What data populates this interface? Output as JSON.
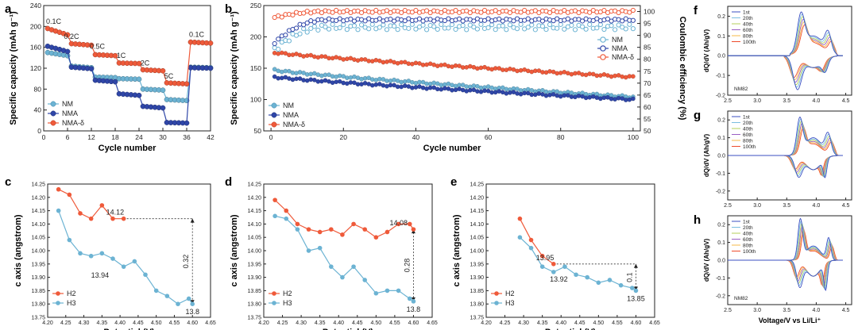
{
  "colors": {
    "nm": "#6cb3d3",
    "nma": "#2f46a8",
    "nmad": "#ef5a3a",
    "dq": [
      "#3b4fc2",
      "#7bbde0",
      "#b5cf5a",
      "#9a5fc4",
      "#f5b84a",
      "#ee4b2b"
    ]
  },
  "chart_data": [
    {
      "panel": "a",
      "type": "scatter",
      "title": "",
      "xlabel": "Cycle number",
      "ylabel": "Specific capacity (mAh g⁻¹)",
      "xlim": [
        0,
        42
      ],
      "ylim": [
        0,
        240
      ],
      "xticks": [
        0,
        6,
        12,
        18,
        24,
        30,
        36,
        42
      ],
      "yticks": [
        0,
        40,
        80,
        120,
        160,
        200,
        240
      ],
      "rate_labels": [
        {
          "text": "0.1C",
          "x": 2.5,
          "y": 205
        },
        {
          "text": "0.2C",
          "x": 7,
          "y": 176
        },
        {
          "text": "0.5C",
          "x": 13.5,
          "y": 157
        },
        {
          "text": "1C",
          "x": 19.5,
          "y": 140
        },
        {
          "text": "2C",
          "x": 25.5,
          "y": 125
        },
        {
          "text": "5C",
          "x": 31.5,
          "y": 100
        },
        {
          "text": "0.1C",
          "x": 38.5,
          "y": 180
        }
      ],
      "legend": [
        "NM",
        "NMA",
        "NMA-δ"
      ],
      "series": [
        {
          "name": "NM",
          "color": "nm",
          "levels": [
            [
              1,
              6,
              150,
              144
            ],
            [
              7,
              12,
              124,
              121
            ],
            [
              13,
              18,
              103,
              102
            ],
            [
              19,
              24,
              100,
              99
            ],
            [
              25,
              30,
              80,
              78
            ],
            [
              31,
              36,
              60,
              58
            ],
            [
              37,
              42,
              122,
              121
            ]
          ]
        },
        {
          "name": "NMA",
          "color": "nma",
          "levels": [
            [
              1,
              6,
              162,
              152
            ],
            [
              7,
              12,
              122,
              119
            ],
            [
              13,
              18,
              97,
              94
            ],
            [
              19,
              24,
              71,
              68
            ],
            [
              25,
              30,
              47,
              44
            ],
            [
              31,
              36,
              16,
              15
            ],
            [
              37,
              42,
              121,
              120
            ]
          ]
        },
        {
          "name": "NMA-δ",
          "color": "nmad",
          "levels": [
            [
              1,
              6,
              196,
              184
            ],
            [
              7,
              12,
              167,
              164
            ],
            [
              13,
              18,
              146,
              144
            ],
            [
              19,
              24,
              130,
              129
            ],
            [
              25,
              30,
              117,
              115
            ],
            [
              31,
              36,
              92,
              90
            ],
            [
              37,
              42,
              170,
              168
            ]
          ]
        }
      ]
    },
    {
      "panel": "b",
      "type": "scatter",
      "xlabel": "Cycle number",
      "ylabel": "Specific capacity (mAh g⁻¹)",
      "y2label": "Coulombic efficiency (%)",
      "xlim": [
        -2,
        102
      ],
      "ylim": [
        50,
        250
      ],
      "y2lim": [
        50,
        102.5
      ],
      "xticks": [
        0,
        20,
        40,
        60,
        80,
        100
      ],
      "yticks": [
        50,
        100,
        150,
        200,
        250
      ],
      "y2ticks": [
        50,
        55,
        60,
        65,
        70,
        75,
        80,
        85,
        90,
        95,
        100
      ],
      "legend_capacity": [
        "NM",
        "NMA",
        "NMA-δ"
      ],
      "legend_efficiency": [
        "NM",
        "NMA",
        "NMA-δ"
      ],
      "capacity": [
        {
          "name": "NM",
          "color": "nm",
          "start": 147,
          "end": 104
        },
        {
          "name": "NMA",
          "color": "nma",
          "start": 136,
          "end": 100
        },
        {
          "name": "NMA-δ",
          "color": "nmad",
          "start": 175,
          "end": 136
        }
      ],
      "efficiency": [
        {
          "name": "NM",
          "color": "nm",
          "start": 84,
          "plateau": 93.5
        },
        {
          "name": "NMA",
          "color": "nma",
          "start": 87,
          "plateau": 96.5
        },
        {
          "name": "NMA-δ",
          "color": "nmad",
          "start": 97.5,
          "plateau": 100
        }
      ]
    },
    {
      "panel": "c",
      "type": "line",
      "xlabel": "Potential (V)",
      "ylabel": "c axis (angstrom)",
      "xlim": [
        4.2,
        4.65
      ],
      "ylim": [
        13.75,
        14.25
      ],
      "xticks": [
        "4.20",
        "4.25",
        "4.30",
        "4.35",
        "4.40",
        "4.45",
        "4.50",
        "4.55",
        "4.60",
        "4.65"
      ],
      "yticks": [
        "13.75",
        "13.80",
        "13.85",
        "13.90",
        "13.95",
        "14.00",
        "14.05",
        "14.10",
        "14.15",
        "14.20",
        "14.25"
      ],
      "legend": [
        "H2",
        "H3"
      ],
      "annotations": {
        "h2": "14.12",
        "mid": "13.94",
        "end": "13.8",
        "delta": "0.32"
      },
      "series": [
        {
          "name": "H2",
          "color": "nmad",
          "x": [
            4.23,
            4.26,
            4.29,
            4.32,
            4.35,
            4.38,
            4.41
          ],
          "y": [
            14.23,
            14.21,
            14.14,
            14.12,
            14.17,
            14.12,
            14.12
          ]
        },
        {
          "name": "H3",
          "color": "nm",
          "x": [
            4.23,
            4.26,
            4.29,
            4.32,
            4.35,
            4.38,
            4.41,
            4.44,
            4.47,
            4.5,
            4.53,
            4.56,
            4.59,
            4.6
          ],
          "y": [
            14.15,
            14.04,
            13.99,
            13.98,
            13.99,
            13.97,
            13.94,
            13.96,
            13.91,
            13.85,
            13.83,
            13.8,
            13.82,
            13.8
          ]
        }
      ]
    },
    {
      "panel": "d",
      "type": "line",
      "xlabel": "Potential (V)",
      "ylabel": "c axis (angstrom)",
      "xlim": [
        4.2,
        4.65
      ],
      "ylim": [
        13.75,
        14.25
      ],
      "xticks": [
        "4.20",
        "4.25",
        "4.30",
        "4.35",
        "4.40",
        "4.45",
        "4.50",
        "4.55",
        "4.60",
        "4.65"
      ],
      "yticks": [
        "13.75",
        "13.80",
        "13.85",
        "13.90",
        "13.95",
        "14.00",
        "14.05",
        "14.10",
        "14.15",
        "14.20",
        "14.25"
      ],
      "legend": [
        "H2",
        "H3"
      ],
      "annotations": {
        "h2": "14.08",
        "end": "13.8",
        "delta": "0.28"
      },
      "series": [
        {
          "name": "H2",
          "color": "nmad",
          "x": [
            4.23,
            4.26,
            4.29,
            4.32,
            4.35,
            4.38,
            4.41,
            4.44,
            4.47,
            4.5,
            4.53,
            4.56,
            4.59,
            4.6
          ],
          "y": [
            14.19,
            14.15,
            14.1,
            14.08,
            14.07,
            14.08,
            14.06,
            14.1,
            14.08,
            14.05,
            14.07,
            14.1,
            14.1,
            14.08
          ]
        },
        {
          "name": "H3",
          "color": "nm",
          "x": [
            4.23,
            4.26,
            4.29,
            4.32,
            4.35,
            4.38,
            4.41,
            4.44,
            4.47,
            4.5,
            4.53,
            4.56,
            4.59,
            4.6
          ],
          "y": [
            14.13,
            14.12,
            14.08,
            14.0,
            14.01,
            13.94,
            13.9,
            13.94,
            13.89,
            13.84,
            13.85,
            13.85,
            13.82,
            13.81
          ]
        }
      ]
    },
    {
      "panel": "e",
      "type": "line",
      "xlabel": "Potential (V)",
      "ylabel": "c axis (angstrom)",
      "xlim": [
        4.2,
        4.65
      ],
      "ylim": [
        13.75,
        14.25
      ],
      "xticks": [
        "4.20",
        "4.25",
        "4.30",
        "4.35",
        "4.40",
        "4.45",
        "4.50",
        "4.55",
        "4.60",
        "4.65"
      ],
      "yticks": [
        "13.75",
        "13.80",
        "13.85",
        "13.90",
        "13.95",
        "14.00",
        "14.05",
        "14.10",
        "14.15",
        "14.20",
        "14.25"
      ],
      "legend": [
        "H2",
        "H3"
      ],
      "annotations": {
        "h2": "13.95",
        "mid": "13.92",
        "end": "13.85",
        "delta": "0.1"
      },
      "series": [
        {
          "name": "H2",
          "color": "nmad",
          "x": [
            4.29,
            4.32,
            4.35,
            4.38
          ],
          "y": [
            14.12,
            14.04,
            13.98,
            13.95
          ]
        },
        {
          "name": "H3",
          "color": "nm",
          "x": [
            4.29,
            4.32,
            4.35,
            4.38,
            4.41,
            4.44,
            4.47,
            4.5,
            4.53,
            4.56,
            4.59,
            4.6
          ],
          "y": [
            14.05,
            14.01,
            13.94,
            13.92,
            13.94,
            13.91,
            13.9,
            13.88,
            13.89,
            13.87,
            13.86,
            13.85
          ]
        }
      ]
    },
    {
      "panel": "f",
      "type": "line",
      "xlabel": "",
      "ylabel": "dQ/dV (Ah/gV)",
      "xlim": [
        2.5,
        4.6
      ],
      "ylim": [
        -0.2,
        0.25
      ],
      "xticks": [
        "2.5",
        "3.0",
        "3.5",
        "4.0",
        "4.5"
      ],
      "yticks": [
        "-0.2",
        "-0.1",
        "0.0",
        "0.1",
        "0.2"
      ],
      "legend": [
        "1st",
        "20th",
        "40th",
        "60th",
        "80th",
        "100th"
      ],
      "label": "NM82",
      "profile": "f"
    },
    {
      "panel": "g",
      "type": "line",
      "xlabel": "",
      "ylabel": "dQ/dV (Ah/gV)",
      "xlim": [
        2.5,
        4.6
      ],
      "ylim": [
        -0.25,
        0.25
      ],
      "xticks": [
        "2.5",
        "3.0",
        "3.5",
        "4.0",
        "4.5"
      ],
      "yticks": [
        "-0.2",
        "-0.1",
        "0.0",
        "0.1",
        "0.2"
      ],
      "legend": [
        "1st",
        "20th",
        "40th",
        "60th",
        "80th",
        "100th"
      ],
      "label": "",
      "profile": "g"
    },
    {
      "panel": "h",
      "type": "line",
      "xlabel": "Voltage/V vs Li/Li⁺",
      "ylabel": "dQ/dV (Ah/gV)",
      "xlim": [
        2.5,
        4.6
      ],
      "ylim": [
        -0.25,
        0.25
      ],
      "xticks": [
        "2.5",
        "3.0",
        "3.5",
        "4.0",
        "4.5"
      ],
      "yticks": [
        "-0.2",
        "-0.1",
        "0.0",
        "0.1",
        "0.2"
      ],
      "legend": [
        "1st",
        "20th",
        "40th",
        "60th",
        "80th",
        "100th"
      ],
      "label": "NM82",
      "profile": "h"
    }
  ]
}
